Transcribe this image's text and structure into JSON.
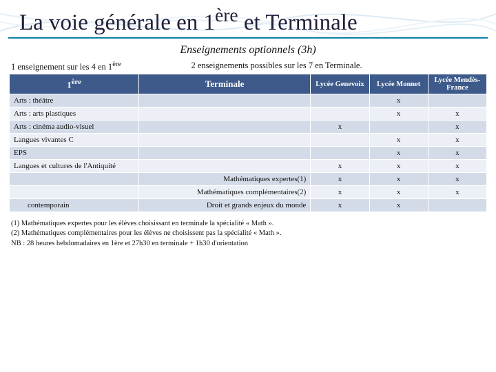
{
  "title_parts": {
    "pre": "La voie générale en 1",
    "sup1": "ère",
    "mid": " et Terminale"
  },
  "subtitle": "Enseignements optionnels (3h)",
  "subhead_left_pre": "1 enseignement sur les 4 en 1",
  "subhead_left_sup": "ère",
  "subhead_right": "2 enseignements possibles sur les 7 en Terminale.",
  "columns": {
    "c1_pre": "1",
    "c1_sup": "ère",
    "cT": "Terminale",
    "h1": "Lycée Genevoix",
    "h2": "Lycée Monnet",
    "h3": "Lycée Mendès-France"
  },
  "rows": [
    {
      "col1": "Arts : théâtre",
      "colT": "",
      "v": [
        "",
        "x",
        ""
      ]
    },
    {
      "col1": "Arts : arts plastiques",
      "colT": "",
      "v": [
        "",
        "x",
        "x"
      ]
    },
    {
      "col1": "Arts : cinéma audio-visuel",
      "colT": "",
      "v": [
        "x",
        "",
        "x"
      ]
    },
    {
      "col1": "Langues vivantes C",
      "colT": "",
      "v": [
        "",
        "x",
        "x"
      ]
    },
    {
      "col1": "EPS",
      "colT": "",
      "v": [
        "",
        "x",
        "x"
      ]
    },
    {
      "col1": "Langues et cultures de l'Antiquité",
      "colT": "",
      "v": [
        "x",
        "x",
        "x"
      ]
    },
    {
      "col1": "",
      "colT": "Mathématiques expertes(1)",
      "v": [
        "x",
        "x",
        "x"
      ],
      "rightAlignT": true
    },
    {
      "col1": "",
      "colT": "Mathématiques complémentaires(2)",
      "v": [
        "x",
        "x",
        "x"
      ],
      "rightAlignT": true
    },
    {
      "col1": "contemporain",
      "colT": "Droit et grands enjeux du monde",
      "v": [
        "x",
        "x",
        ""
      ],
      "rightAlignT": true,
      "col1Indent": true
    }
  ],
  "footnotes": [
    "(1)   Mathématiques expertes pour les élèves choisissant en terminale la spécialité « Math ».",
    "(2)   Mathématiques complémentaires pour les élèves ne choisissent pas la spécialité « Math ».",
    "NB : 28 heures hebdomadaires en 1ère et 27h30 en terminale + 1h30 d'orientation"
  ],
  "colors": {
    "header_bg": "#3d5a8a",
    "band0": "#d4dbe8",
    "band1": "#ecf0f6",
    "underline": "#0b7fa6",
    "wave_stroke": "#9fc7df"
  }
}
